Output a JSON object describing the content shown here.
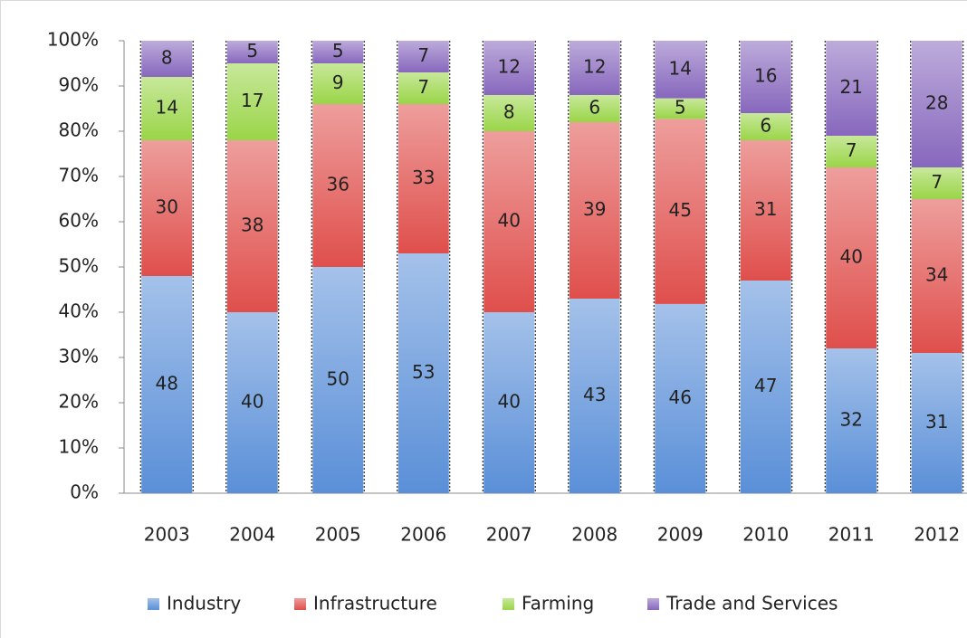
{
  "chart_data": {
    "type": "bar",
    "stack": "percent",
    "categories": [
      "2003",
      "2004",
      "2005",
      "2006",
      "2007",
      "2008",
      "2009",
      "2010",
      "2011",
      "2012"
    ],
    "series": [
      {
        "name": "Industry",
        "color": "#5a8fd8",
        "values": [
          48,
          40,
          50,
          53,
          40,
          43,
          46,
          47,
          32,
          31
        ]
      },
      {
        "name": "Infrastructure",
        "color": "#df4f4c",
        "values": [
          30,
          38,
          36,
          33,
          40,
          39,
          45,
          31,
          40,
          34
        ]
      },
      {
        "name": "Farming",
        "color": "#9ad548",
        "values": [
          14,
          17,
          9,
          7,
          8,
          6,
          5,
          6,
          7,
          7
        ]
      },
      {
        "name": "Trade and Services",
        "color": "#8767bd",
        "values": [
          8,
          5,
          5,
          7,
          12,
          12,
          14,
          16,
          21,
          28
        ]
      }
    ],
    "ylim": [
      0,
      100
    ],
    "yticks": [
      {
        "value": 0,
        "label": "0%"
      },
      {
        "value": 10,
        "label": "10%"
      },
      {
        "value": 20,
        "label": "20%"
      },
      {
        "value": 30,
        "label": "30%"
      },
      {
        "value": 40,
        "label": "40%"
      },
      {
        "value": 50,
        "label": "50%"
      },
      {
        "value": 60,
        "label": "60%"
      },
      {
        "value": 70,
        "label": "70%"
      },
      {
        "value": 80,
        "label": "80%"
      },
      {
        "value": 90,
        "label": "90%"
      },
      {
        "value": 100,
        "label": "100%"
      }
    ],
    "legend": "bottom"
  }
}
